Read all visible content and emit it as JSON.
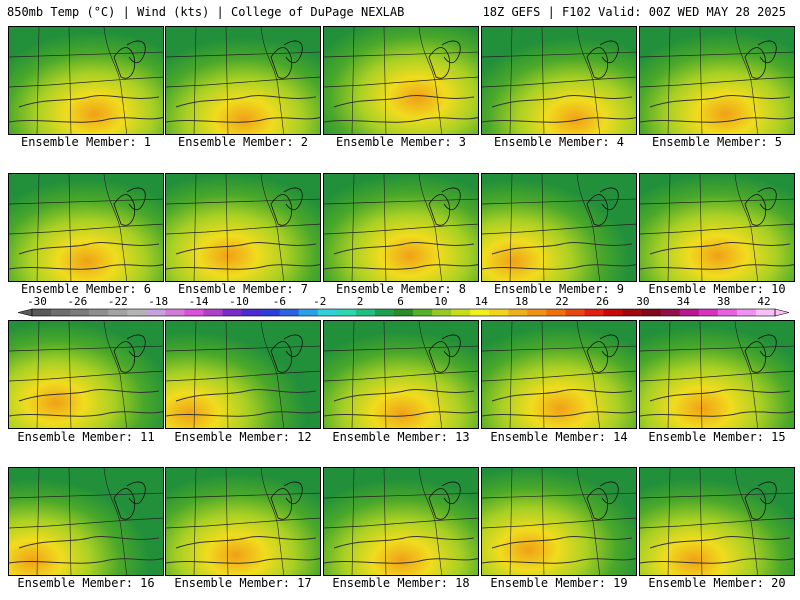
{
  "header": {
    "left_title": "850mb Temp (°C) | Wind (kts) | College of DuPage NEXLAB",
    "right_title": "18Z GEFS | F102 Valid: 00Z WED MAY 28 2025"
  },
  "panels": [
    {
      "label": "Ensemble Member: 1"
    },
    {
      "label": "Ensemble Member: 2"
    },
    {
      "label": "Ensemble Member: 3"
    },
    {
      "label": "Ensemble Member: 4"
    },
    {
      "label": "Ensemble Member: 5"
    },
    {
      "label": "Ensemble Member: 6"
    },
    {
      "label": "Ensemble Member: 7"
    },
    {
      "label": "Ensemble Member: 8"
    },
    {
      "label": "Ensemble Member: 9"
    },
    {
      "label": "Ensemble Member: 10"
    },
    {
      "label": "Ensemble Member: 11"
    },
    {
      "label": "Ensemble Member: 12"
    },
    {
      "label": "Ensemble Member: 13"
    },
    {
      "label": "Ensemble Member: 14"
    },
    {
      "label": "Ensemble Member: 15"
    },
    {
      "label": "Ensemble Member: 16"
    },
    {
      "label": "Ensemble Member: 17"
    },
    {
      "label": "Ensemble Member: 18"
    },
    {
      "label": "Ensemble Member: 19"
    },
    {
      "label": "Ensemble Member: 20"
    }
  ],
  "colorbar": {
    "ticks": [
      "-30",
      "-26",
      "-22",
      "-18",
      "-14",
      "-10",
      "-6",
      "-2",
      "2",
      "6",
      "10",
      "14",
      "18",
      "22",
      "26",
      "30",
      "34",
      "38",
      "42"
    ],
    "colors": [
      "#5a5a5a",
      "#6e6e6e",
      "#7c7c7c",
      "#8e8e8e",
      "#a2a2a2",
      "#b4b4b4",
      "#c8a0dc",
      "#d27ad8",
      "#dc50dc",
      "#b040c8",
      "#7a2cc8",
      "#4a2cd0",
      "#2a3ed8",
      "#2a64e0",
      "#2aa0e8",
      "#30d0d8",
      "#2ad8b0",
      "#22c080",
      "#1ea04e",
      "#288c28",
      "#58b028",
      "#96c826",
      "#c8dc1e",
      "#f0f01e",
      "#f0d41e",
      "#f0b01e",
      "#f09018",
      "#f07010",
      "#e84810",
      "#e02010",
      "#c80808",
      "#a00810",
      "#800818",
      "#901048",
      "#b81890",
      "#d830c0",
      "#e860e0",
      "#f090f0",
      "#f8c0f8"
    ]
  }
}
